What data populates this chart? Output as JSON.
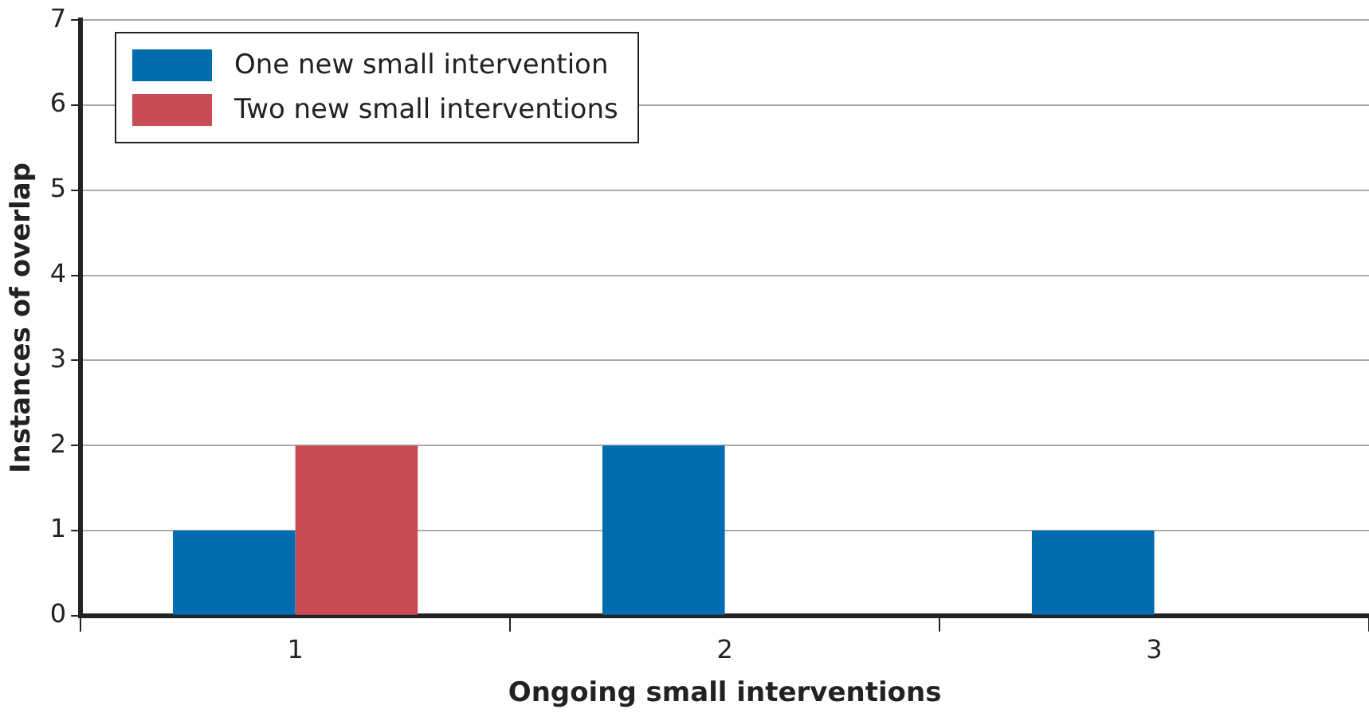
{
  "chart_data": {
    "type": "bar",
    "categories": [
      "1",
      "2",
      "3"
    ],
    "series": [
      {
        "name": "One new small intervention",
        "color": "#006cb0",
        "values": [
          1,
          2,
          1
        ]
      },
      {
        "name": "Two new small interventions",
        "color": "#c94c54",
        "values": [
          2,
          null,
          null
        ]
      }
    ],
    "xlabel": "Ongoing small interventions",
    "ylabel": "Instances of overlap",
    "ylim": [
      0,
      7
    ],
    "yticks": [
      0,
      1,
      2,
      3,
      4,
      5,
      6,
      7
    ],
    "grid": "y",
    "legend": "top left"
  }
}
